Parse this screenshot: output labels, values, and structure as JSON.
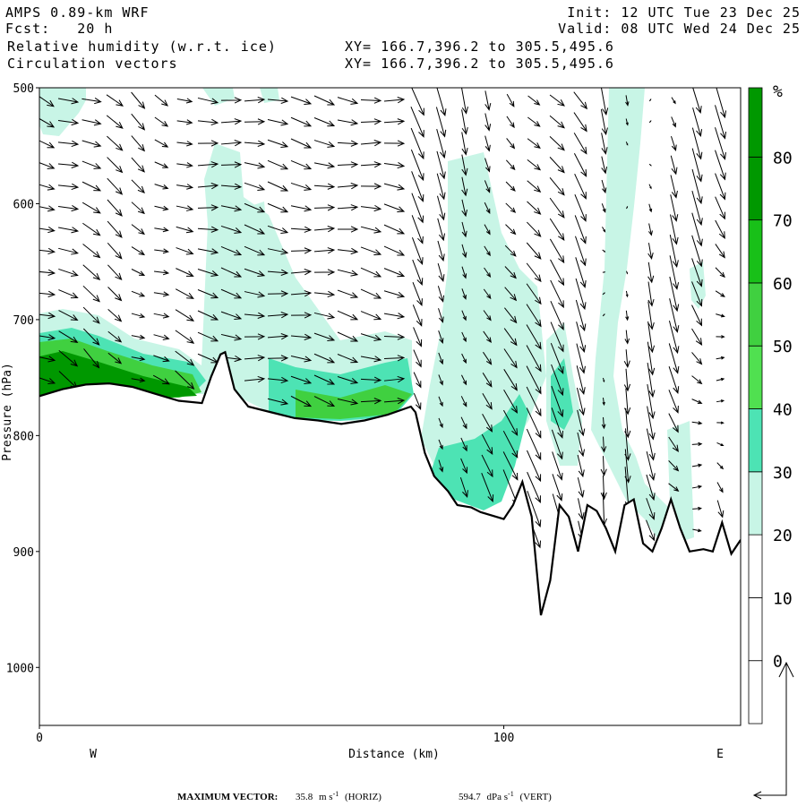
{
  "header": {
    "model": "AMPS 0.89-km WRF",
    "fcst": "Fcst:   20 h",
    "init": "Init: 12 UTC Tue 23 Dec 25",
    "valid": "Valid: 08 UTC Wed 24 Dec 25",
    "field1": "Relative humidity (w.r.t. ice)",
    "field2": "Circulation vectors",
    "xy1": "XY= 166.7,396.2 to 305.5,495.6",
    "xy2": "XY= 166.7,396.2 to 305.5,495.6"
  },
  "chart_data": {
    "type": "heatmap",
    "title": "Relative humidity (w.r.t. ice)",
    "xlabel": "Distance (km)",
    "ylabel": "Pressure (hPa)",
    "xlim": [
      0,
      151
    ],
    "ylim": [
      1050,
      500
    ],
    "x_ticks": [
      0,
      100
    ],
    "y_ticks": [
      500,
      600,
      700,
      800,
      900,
      1000
    ],
    "direction_labels": {
      "west": "W",
      "east": "E"
    },
    "colorbar": {
      "unit": "%",
      "levels": [
        0,
        10,
        20,
        30,
        40,
        50,
        60,
        70,
        80
      ],
      "colors": [
        "#ffffff",
        "#ffffff",
        "#ffffff",
        "#c8f5e6",
        "#4de3b4",
        "#50e050",
        "#40d040",
        "#18c018",
        "#009800"
      ]
    },
    "terrain_profile": {
      "x_km": [
        0,
        5,
        10,
        15,
        20,
        25,
        30,
        35,
        37,
        39,
        40,
        42,
        45,
        50,
        55,
        60,
        65,
        70,
        75,
        80,
        81,
        83,
        85,
        88,
        90,
        93,
        95,
        100,
        102,
        104,
        106,
        108,
        110,
        112,
        114,
        116,
        118,
        120,
        122,
        124,
        126,
        128,
        130,
        132,
        134,
        136,
        138,
        140,
        143,
        145,
        147,
        149,
        151
      ],
      "p_hpa": [
        766,
        760,
        756,
        755,
        758,
        764,
        770,
        772,
        749,
        730,
        728,
        760,
        775,
        780,
        785,
        787,
        790,
        787,
        782,
        775,
        780,
        815,
        835,
        848,
        860,
        862,
        866,
        872,
        860,
        840,
        870,
        955,
        925,
        860,
        870,
        900,
        860,
        865,
        880,
        900,
        860,
        855,
        893,
        900,
        880,
        855,
        880,
        900,
        898,
        900,
        875,
        902,
        890
      ]
    },
    "max_vector": {
      "label": "MAXIMUM VECTOR:",
      "horiz_value": "35.8",
      "horiz_unit": "m s",
      "horiz_exp": "-1",
      "horiz_tag": "(HORIZ)",
      "vert_value": "594.7",
      "vert_unit": "dPa s",
      "vert_exp": "-1",
      "vert_tag": "(VERT)"
    }
  }
}
